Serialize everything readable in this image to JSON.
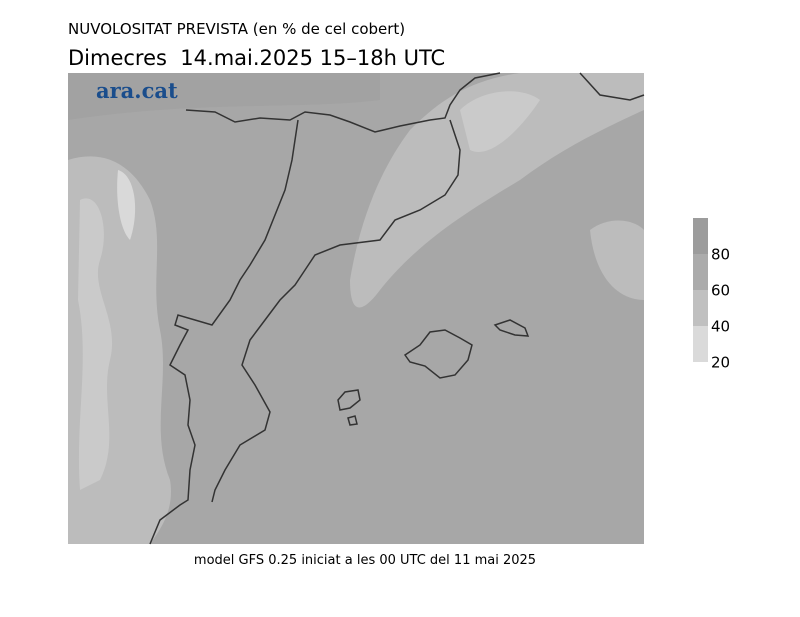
{
  "header": {
    "title": "NUVOLOSITAT PREVISTA (en % de cel cobert)",
    "subtitle": "Dimecres  14.mai.2025 15–18h UTC"
  },
  "logo": "ara.cat",
  "legend": {
    "labels": [
      80,
      60,
      40,
      20
    ]
  },
  "footer": "model GFS 0.25 iniciat a les 00 UTC del 11 mai 2025"
}
